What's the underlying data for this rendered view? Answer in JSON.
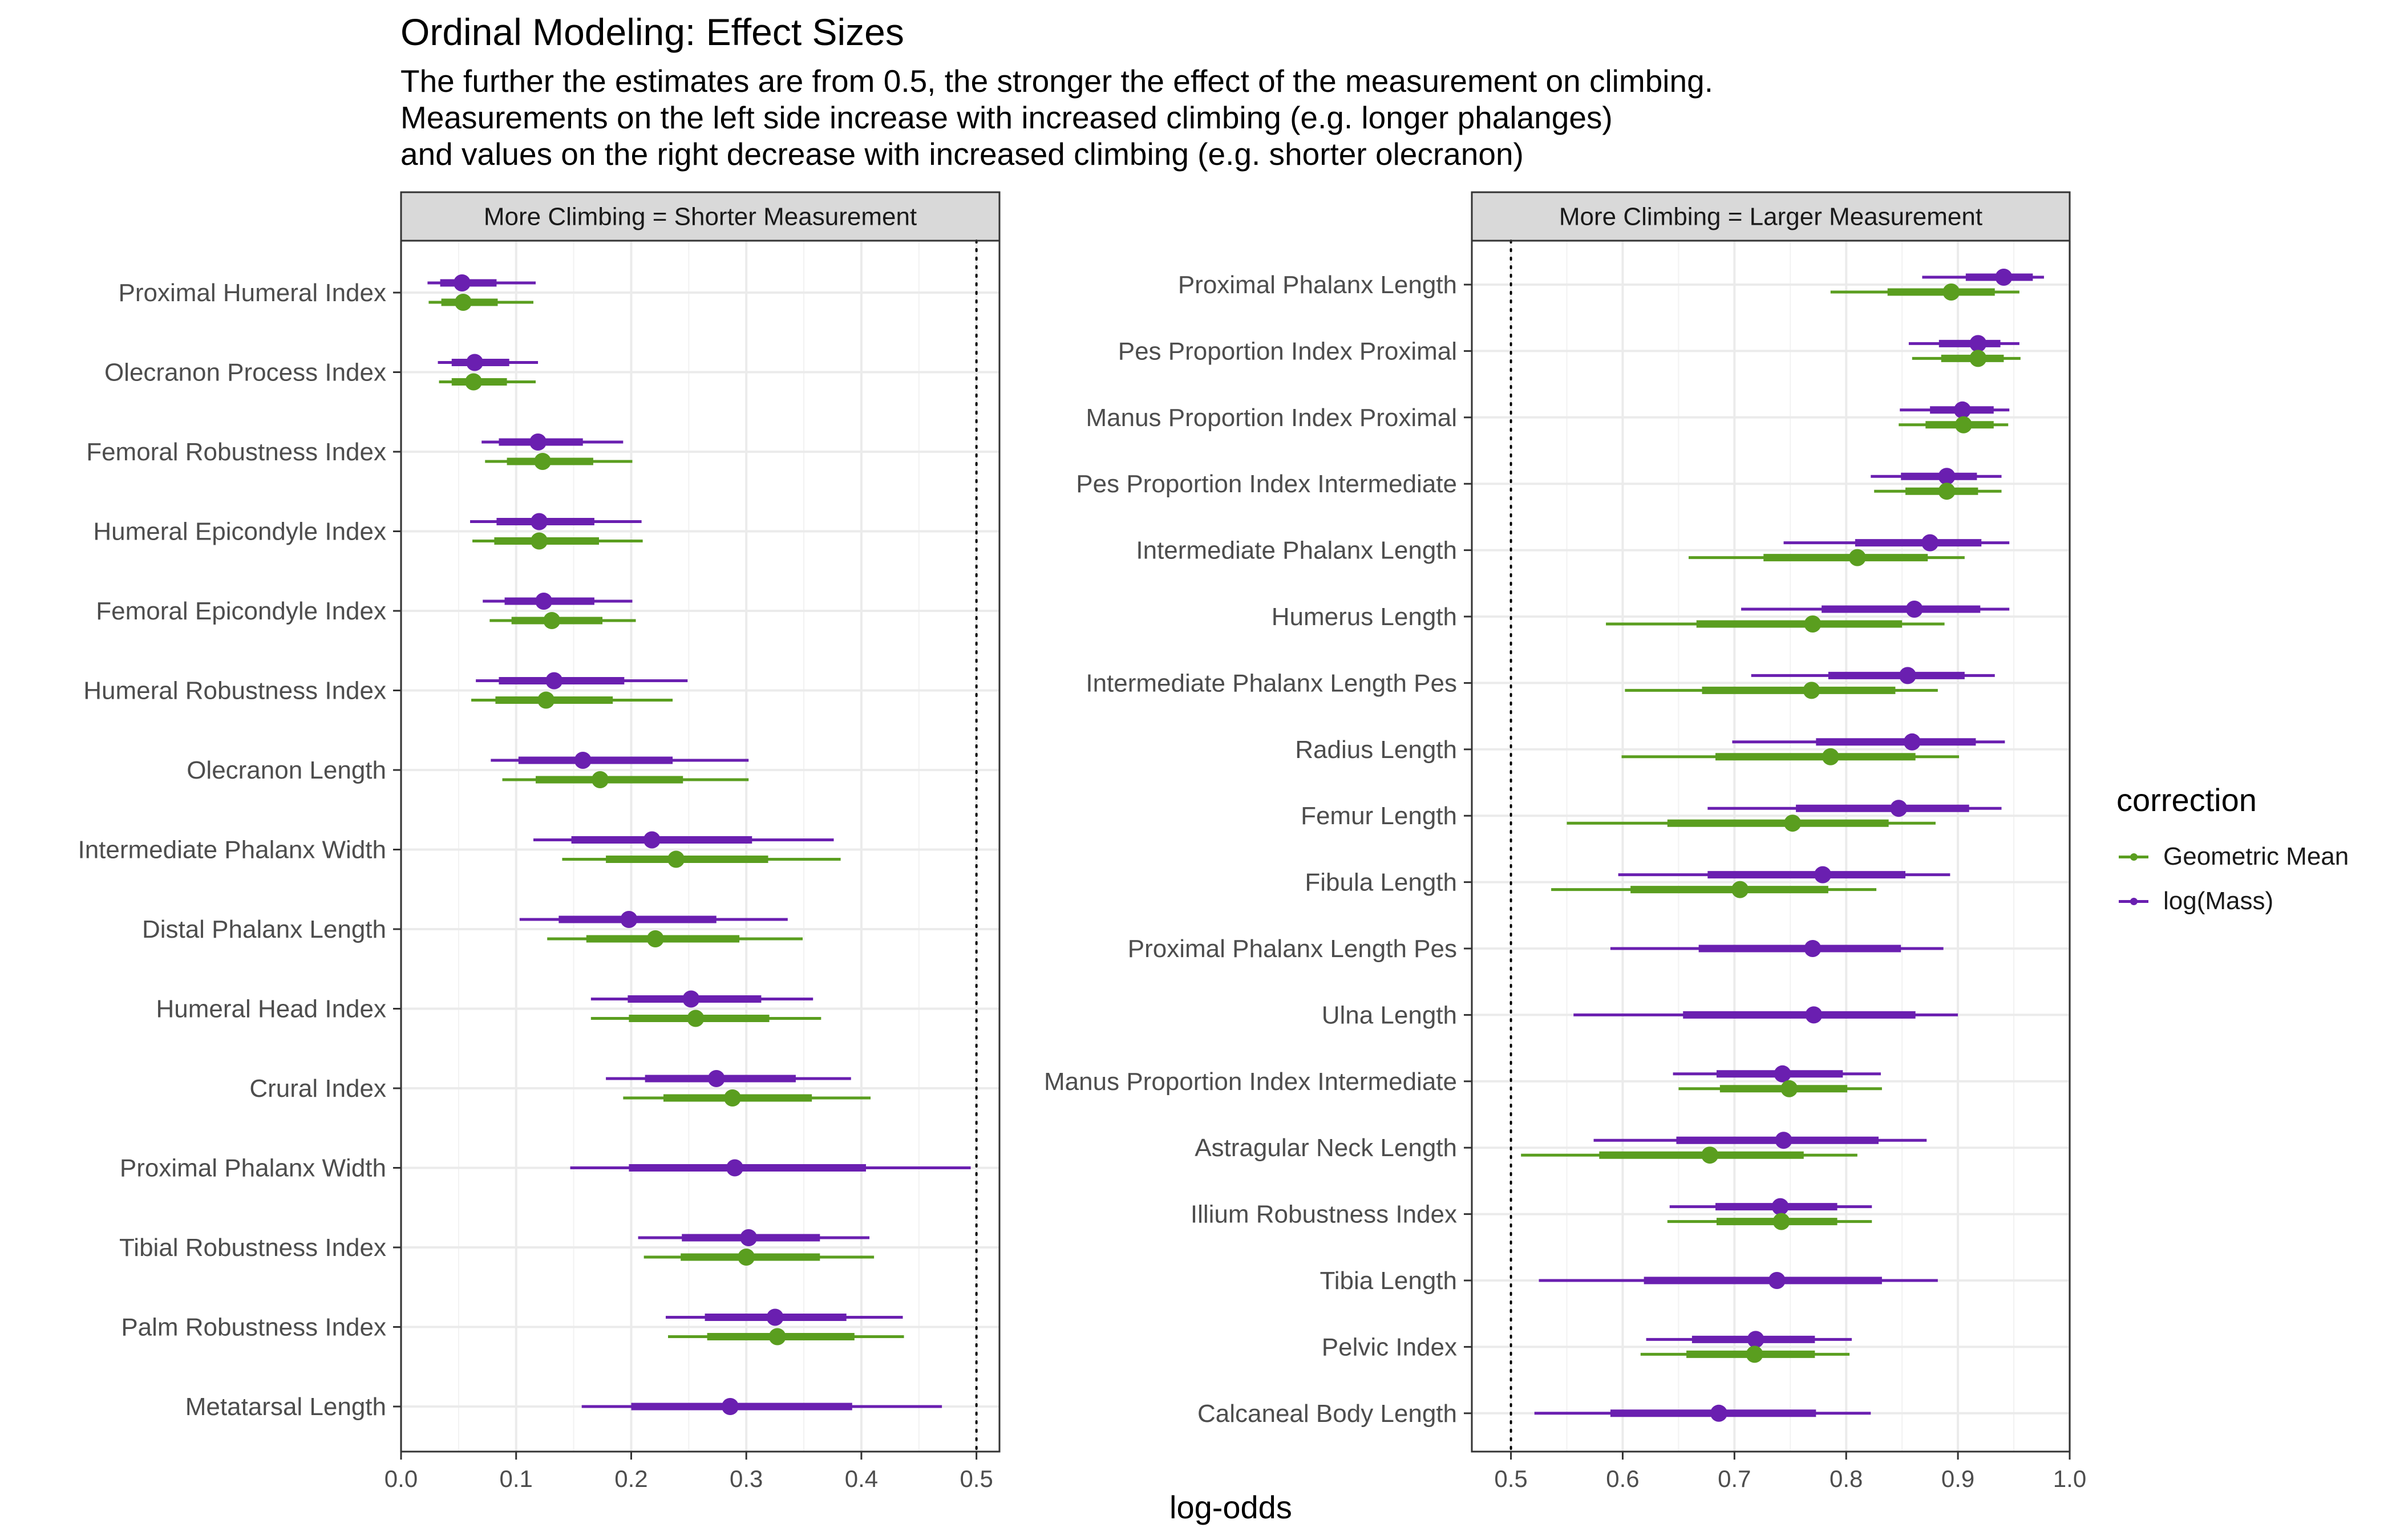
{
  "title": "Ordinal Modeling: Effect Sizes",
  "subtitle": [
    "The further the estimates are from 0.5, the stronger the effect of the measurement on climbing.",
    "Measurements on the left side increase with increased climbing (e.g. longer phalanges)",
    "and values on the right decrease with increased climbing (e.g. shorter olecranon)"
  ],
  "xlabel": "log-odds",
  "legend": {
    "title": "correction",
    "items": [
      {
        "name": "Geometric Mean",
        "color": "#5a9e1f"
      },
      {
        "name": "log(Mass)",
        "color": "#6a1fb0"
      }
    ]
  },
  "chart_data": [
    {
      "type": "interval",
      "panel": "More Climbing = Shorter Measurement",
      "xlim": [
        0,
        0.52
      ],
      "xticks": [
        "0.0",
        "0.1",
        "0.2",
        "0.3",
        "0.4",
        "0.5"
      ],
      "reference_line": 0.5,
      "grid": true,
      "categories": [
        "Proximal Humeral Index",
        "Olecranon Process Index",
        "Femoral Robustness Index",
        "Humeral Epicondyle Index",
        "Femoral Epicondyle Index",
        "Humeral Robustness Index",
        "Olecranon Length",
        "Intermediate Phalanx Width",
        "Distal Phalanx Length",
        "Humeral Head Index",
        "Crural Index",
        "Proximal Phalanx Width",
        "Tibial Robustness Index",
        "Palm Robustness Index",
        "Metatarsal Length"
      ],
      "series": [
        {
          "name": "log(Mass)",
          "color": "#6a1fb0",
          "points": [
            [
              0.053,
              0.034,
              0.083,
              0.023,
              0.117
            ],
            [
              0.064,
              0.044,
              0.094,
              0.032,
              0.119
            ],
            [
              0.119,
              0.085,
              0.158,
              0.07,
              0.193
            ],
            [
              0.12,
              0.083,
              0.168,
              0.06,
              0.209
            ],
            [
              0.124,
              0.09,
              0.168,
              0.071,
              0.201
            ],
            [
              0.133,
              0.085,
              0.194,
              0.065,
              0.249
            ],
            [
              0.158,
              0.102,
              0.236,
              0.078,
              0.302
            ],
            [
              0.218,
              0.148,
              0.305,
              0.115,
              0.376
            ],
            [
              0.198,
              0.137,
              0.274,
              0.103,
              0.336
            ],
            [
              0.252,
              0.197,
              0.313,
              0.165,
              0.358
            ],
            [
              0.274,
              0.212,
              0.343,
              0.178,
              0.391
            ],
            [
              0.29,
              0.198,
              0.404,
              0.147,
              0.495
            ],
            [
              0.302,
              0.244,
              0.364,
              0.206,
              0.407
            ],
            [
              0.325,
              0.264,
              0.387,
              0.23,
              0.436
            ],
            [
              0.286,
              0.2,
              0.392,
              0.157,
              0.47
            ]
          ]
        },
        {
          "name": "Geometric Mean",
          "color": "#5a9e1f",
          "points": [
            [
              0.054,
              0.035,
              0.084,
              0.024,
              0.115
            ],
            [
              0.063,
              0.044,
              0.092,
              0.033,
              0.117
            ],
            [
              0.123,
              0.092,
              0.167,
              0.073,
              0.201
            ],
            [
              0.12,
              0.081,
              0.172,
              0.062,
              0.21
            ],
            [
              0.131,
              0.096,
              0.175,
              0.077,
              0.204
            ],
            [
              0.126,
              0.082,
              0.184,
              0.061,
              0.236
            ],
            [
              0.173,
              0.117,
              0.245,
              0.088,
              0.302
            ],
            [
              0.239,
              0.178,
              0.319,
              0.14,
              0.382
            ],
            [
              0.221,
              0.161,
              0.294,
              0.127,
              0.349
            ],
            [
              0.256,
              0.198,
              0.32,
              0.165,
              0.365
            ],
            [
              0.288,
              0.228,
              0.357,
              0.193,
              0.408
            ],
            null,
            [
              0.3,
              0.243,
              0.364,
              0.211,
              0.411
            ],
            [
              0.327,
              0.266,
              0.394,
              0.232,
              0.437
            ],
            null
          ]
        }
      ]
    },
    {
      "type": "interval",
      "panel": "More Climbing = Larger Measurement",
      "xlim": [
        0.465,
        1.0
      ],
      "xticks": [
        "0.5",
        "0.6",
        "0.7",
        "0.8",
        "0.9",
        "1.0"
      ],
      "reference_line": 0.5,
      "grid": true,
      "categories": [
        "Proximal Phalanx Length",
        "Pes Proportion Index Proximal",
        "Manus Proportion Index Proximal",
        "Pes Proportion Index Intermediate",
        "Intermediate Phalanx Length",
        "Humerus Length",
        "Intermediate Phalanx Length Pes",
        "Radius Length",
        "Femur Length",
        "Fibula Length",
        "Proximal Phalanx Length Pes",
        "Ulna Length",
        "Manus Proportion Index Intermediate",
        "Astragular Neck Length",
        "Illium Robustness Index",
        "Tibia Length",
        "Pelvic Index",
        "Calcaneal Body Length"
      ],
      "series": [
        {
          "name": "log(Mass)",
          "color": "#6a1fb0",
          "points": [
            [
              0.941,
              0.907,
              0.967,
              0.868,
              0.977
            ],
            [
              0.918,
              0.883,
              0.938,
              0.856,
              0.955
            ],
            [
              0.904,
              0.875,
              0.932,
              0.848,
              0.946
            ],
            [
              0.89,
              0.849,
              0.917,
              0.822,
              0.939
            ],
            [
              0.875,
              0.808,
              0.921,
              0.744,
              0.946
            ],
            [
              0.861,
              0.778,
              0.92,
              0.706,
              0.946
            ],
            [
              0.855,
              0.784,
              0.906,
              0.715,
              0.933
            ],
            [
              0.859,
              0.773,
              0.916,
              0.698,
              0.942
            ],
            [
              0.847,
              0.755,
              0.91,
              0.676,
              0.939
            ],
            [
              0.779,
              0.676,
              0.853,
              0.596,
              0.893
            ],
            [
              0.77,
              0.668,
              0.849,
              0.589,
              0.887
            ],
            [
              0.771,
              0.654,
              0.862,
              0.556,
              0.9
            ],
            [
              0.743,
              0.684,
              0.797,
              0.645,
              0.831
            ],
            [
              0.744,
              0.648,
              0.829,
              0.574,
              0.872
            ],
            [
              0.741,
              0.683,
              0.792,
              0.642,
              0.823
            ],
            [
              0.738,
              0.619,
              0.832,
              0.525,
              0.882
            ],
            [
              0.719,
              0.662,
              0.772,
              0.621,
              0.805
            ],
            [
              0.686,
              0.589,
              0.773,
              0.521,
              0.822
            ]
          ]
        },
        {
          "name": "Geometric Mean",
          "color": "#5a9e1f",
          "points": [
            [
              0.894,
              0.837,
              0.933,
              0.786,
              0.955
            ],
            [
              0.918,
              0.885,
              0.941,
              0.859,
              0.956
            ],
            [
              0.905,
              0.871,
              0.932,
              0.847,
              0.945
            ],
            [
              0.89,
              0.853,
              0.918,
              0.825,
              0.939
            ],
            [
              0.81,
              0.726,
              0.873,
              0.659,
              0.906
            ],
            [
              0.77,
              0.666,
              0.85,
              0.585,
              0.888
            ],
            [
              0.769,
              0.671,
              0.844,
              0.602,
              0.882
            ],
            [
              0.786,
              0.683,
              0.862,
              0.599,
              0.901
            ],
            [
              0.752,
              0.64,
              0.838,
              0.55,
              0.88
            ],
            [
              0.705,
              0.607,
              0.784,
              0.536,
              0.827
            ],
            null,
            null,
            [
              0.749,
              0.687,
              0.801,
              0.65,
              0.832
            ],
            [
              0.678,
              0.579,
              0.762,
              0.509,
              0.81
            ],
            [
              0.742,
              0.684,
              0.792,
              0.64,
              0.823
            ],
            null,
            [
              0.718,
              0.657,
              0.772,
              0.616,
              0.803
            ],
            null
          ]
        }
      ]
    }
  ]
}
